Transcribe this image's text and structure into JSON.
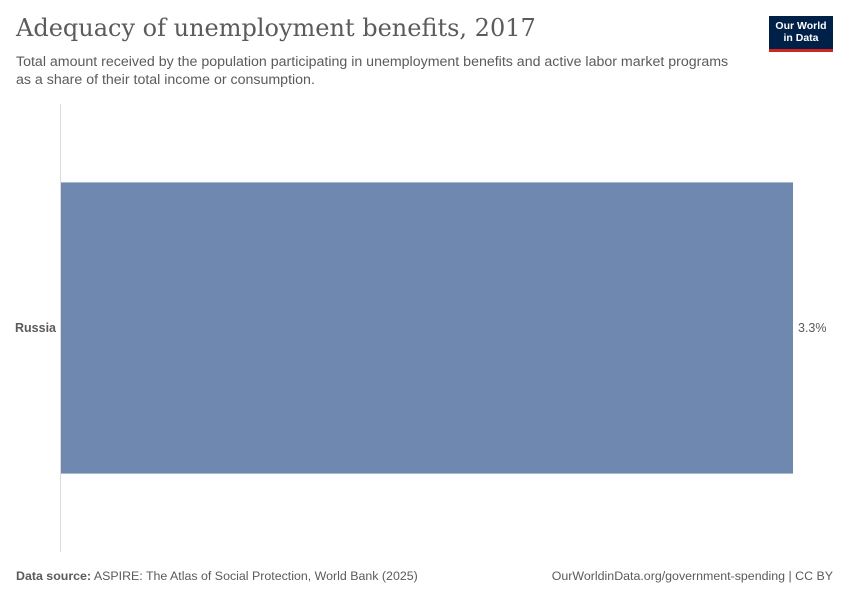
{
  "header": {
    "title": "Adequacy of unemployment benefits, 2017",
    "subtitle": "Total amount received by the population participating in unemployment benefits and active labor market programs as a share of their total income or consumption."
  },
  "logo": {
    "line1": "Our World",
    "line2": "in Data"
  },
  "chart_data": {
    "type": "bar",
    "orientation": "horizontal",
    "categories": [
      "Russia"
    ],
    "values": [
      3.3
    ],
    "value_labels": [
      "3.3%"
    ],
    "title": "Adequacy of unemployment benefits, 2017",
    "xlabel": "",
    "ylabel": "",
    "xlim": [
      0,
      3.3
    ],
    "grid": false,
    "bar_color": "#6f88b0",
    "axis_color": "#dadada"
  },
  "footer": {
    "source_label": "Data source:",
    "source_text": "ASPIRE: The Atlas of Social Protection, World Bank (2025)",
    "url_text": "OurWorldinData.org/government-spending | CC BY"
  }
}
